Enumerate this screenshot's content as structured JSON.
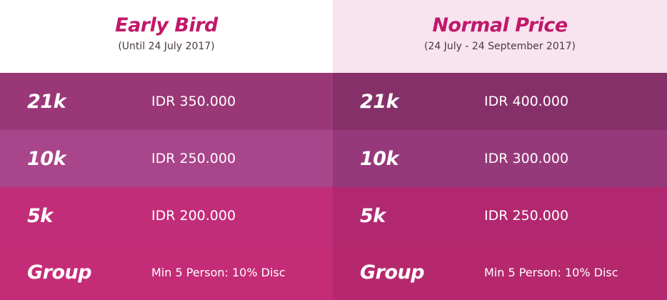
{
  "columns": [
    {
      "title": "Early Bird",
      "subtitle": "(Until 24 July 2017)",
      "rows": [
        {
          "category": "21k",
          "price": "IDR 350.000"
        },
        {
          "category": "10k",
          "price": "IDR 250.000"
        },
        {
          "category": "5k",
          "price": "IDR 200.000"
        },
        {
          "category": "Group",
          "price": "Min 5 Person: 10% Disc"
        }
      ]
    },
    {
      "title": "Normal Price",
      "subtitle": "(24 July - 24 September 2017)",
      "rows": [
        {
          "category": "21k",
          "price": "IDR 400.000"
        },
        {
          "category": "10k",
          "price": "IDR 300.000"
        },
        {
          "category": "5k",
          "price": "IDR 250.000"
        },
        {
          "category": "Group",
          "price": "Min 5 Person: 10% Disc"
        }
      ]
    }
  ],
  "colors": {
    "title": "#c1186b",
    "header_right_bg": "#f7e4ee",
    "row1_left": "#9a3877",
    "row1_right": "#863069",
    "row2_left": "#a9458a",
    "row2_right": "#96397a",
    "row3_left": "#c22d7a",
    "row3_right": "#b22870",
    "row4_left": "#c42c77",
    "row4_right": "#b5286d"
  }
}
